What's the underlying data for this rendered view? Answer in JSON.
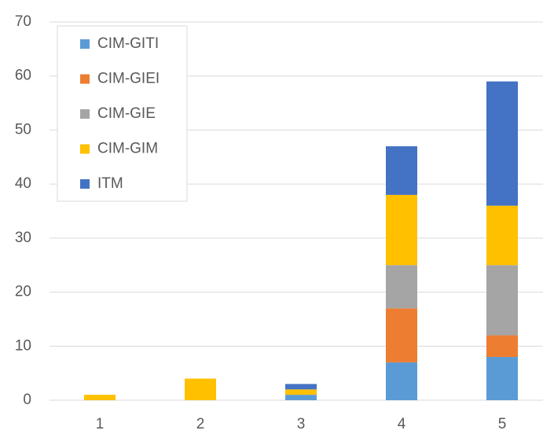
{
  "chart_data": {
    "type": "bar",
    "stacked": true,
    "categories": [
      "1",
      "2",
      "3",
      "4",
      "5"
    ],
    "series": [
      {
        "name": "CIM-GITI",
        "color": "#5b9bd5",
        "values": [
          0,
          0,
          1,
          7,
          8
        ]
      },
      {
        "name": "CIM-GIEI",
        "color": "#ed7d31",
        "values": [
          0,
          0,
          0,
          10,
          4
        ]
      },
      {
        "name": "CIM-GIE",
        "color": "#a5a5a5",
        "values": [
          0,
          0,
          0,
          8,
          13
        ]
      },
      {
        "name": "CIM-GIM",
        "color": "#ffc000",
        "values": [
          1,
          4,
          1,
          13,
          11
        ]
      },
      {
        "name": "ITM",
        "color": "#4472c4",
        "values": [
          0,
          0,
          1,
          9,
          23
        ]
      }
    ],
    "ylim": [
      0,
      70
    ],
    "yticks": [
      0,
      10,
      20,
      30,
      40,
      50,
      60,
      70
    ],
    "grid": true,
    "legend": "upper left"
  }
}
